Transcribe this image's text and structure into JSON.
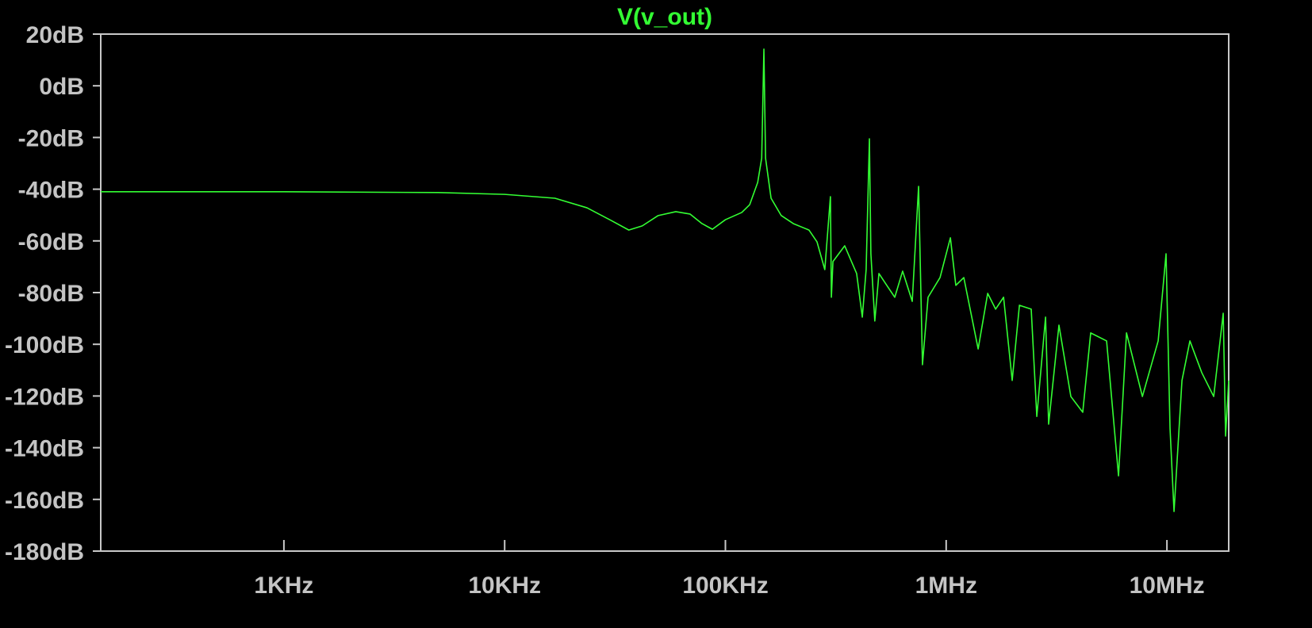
{
  "chart_data": {
    "type": "line",
    "title": "V(v_out)",
    "color": "#33ff33",
    "xscale": "log",
    "xlim": [
      148,
      19050000
    ],
    "ylim": [
      -180,
      20
    ],
    "xticks": [
      {
        "value": 1000,
        "label": "1KHz"
      },
      {
        "value": 10000,
        "label": "10KHz"
      },
      {
        "value": 100000,
        "label": "100KHz"
      },
      {
        "value": 1000000,
        "label": "1MHz"
      },
      {
        "value": 10000000,
        "label": "10MHz"
      }
    ],
    "yticks": [
      {
        "value": 20,
        "label": "20dB"
      },
      {
        "value": 0,
        "label": "0dB"
      },
      {
        "value": -20,
        "label": "-20dB"
      },
      {
        "value": -40,
        "label": "-40dB"
      },
      {
        "value": -60,
        "label": "-60dB"
      },
      {
        "value": -80,
        "label": "-80dB"
      },
      {
        "value": -100,
        "label": "-100dB"
      },
      {
        "value": -120,
        "label": "-120dB"
      },
      {
        "value": -140,
        "label": "-140dB"
      },
      {
        "value": -160,
        "label": "-160dB"
      },
      {
        "value": -180,
        "label": "-180dB"
      }
    ],
    "x": [
      148,
      1000,
      5000,
      10000,
      16900,
      23600,
      30200,
      36500,
      42000,
      49600,
      59600,
      69100,
      78300,
      87300,
      100000,
      118600,
      128800,
      140000,
      146000,
      149400,
      152000,
      161000,
      179000,
      203000,
      239000,
      260000,
      282000,
      299000,
      302000,
      307000,
      347000,
      393000,
      417000,
      434000,
      449000,
      456000,
      475000,
      496000,
      538000,
      585000,
      635000,
      702000,
      750000,
      781000,
      828000,
      938000,
      1045000,
      1106000,
      1202000,
      1306000,
      1396000,
      1542000,
      1675000,
      1820000,
      1991000,
      2147000,
      2428000,
      2574000,
      2820000,
      2912000,
      3243000,
      3671000,
      4156000,
      4516000,
      5330000,
      6036000,
      6560000,
      7742000,
      9127000,
      9910000,
      10330000,
      10770000,
      11700000,
      12710000,
      14390000,
      16290000,
      17990000,
      18440000,
      19050000
    ],
    "values": [
      -41,
      -41,
      -41.3,
      -42,
      -43.5,
      -47.2,
      -52,
      -55.8,
      -54.2,
      -50.2,
      -48.7,
      -49.6,
      -53.3,
      -55.5,
      -51.8,
      -49,
      -46,
      -37.4,
      -28,
      14.2,
      -28,
      -43.5,
      -50.2,
      -53.3,
      -55.8,
      -60.4,
      -71.1,
      -42.9,
      -81.8,
      -68,
      -61.9,
      -72.6,
      -89.5,
      -71.1,
      -20.5,
      -65,
      -91,
      -72.6,
      -77.2,
      -81.8,
      -71.7,
      -83.4,
      -38.9,
      -107.9,
      -81.8,
      -74.2,
      -58.8,
      -77.2,
      -74.2,
      -89.5,
      -101.8,
      -80.3,
      -86.4,
      -81.8,
      -114,
      -84.9,
      -86.4,
      -127.9,
      -89.5,
      -130.9,
      -92.6,
      -120.2,
      -126.3,
      -95.6,
      -98.7,
      -150.9,
      -95.6,
      -120.2,
      -98.7,
      -65,
      -132.5,
      -164.7,
      -114,
      -98.7,
      -111,
      -120.2,
      -88,
      -135.5,
      -114
    ]
  }
}
